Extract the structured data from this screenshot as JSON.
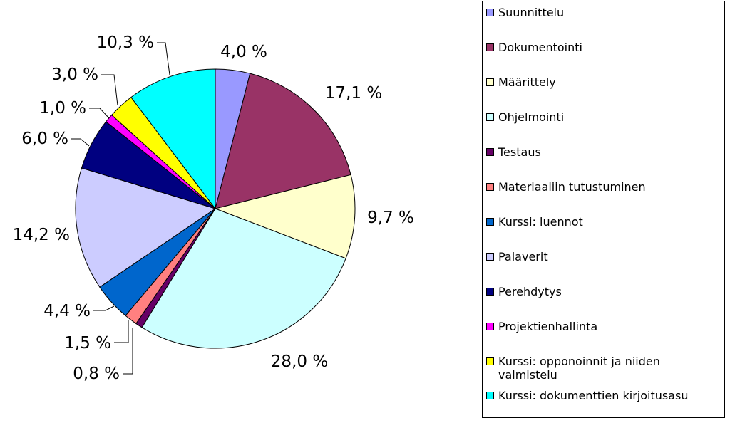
{
  "chart_data": {
    "type": "pie",
    "title": "",
    "legend_position": "right",
    "slices": [
      {
        "name": "Suunnittelu",
        "value": 4.0,
        "label": "4,0 %",
        "color": "#9999ff"
      },
      {
        "name": "Dokumentointi",
        "value": 17.1,
        "label": "17,1 %",
        "color": "#993366"
      },
      {
        "name": "Määrittely",
        "value": 9.7,
        "label": "9,7 %",
        "color": "#ffffcc"
      },
      {
        "name": "Ohjelmointi",
        "value": 28.0,
        "label": "28,0 %",
        "color": "#ccffff"
      },
      {
        "name": "Testaus",
        "value": 0.8,
        "label": "0,8 %",
        "color": "#660066"
      },
      {
        "name": "Materiaaliin tutustuminen",
        "value": 1.5,
        "label": "1,5 %",
        "color": "#ff8080"
      },
      {
        "name": "Kurssi: luennot",
        "value": 4.4,
        "label": "4,4 %",
        "color": "#0066cc"
      },
      {
        "name": "Palaverit",
        "value": 14.2,
        "label": "14,2 %",
        "color": "#ccccff"
      },
      {
        "name": "Perehdytys",
        "value": 6.0,
        "label": "6,0 %",
        "color": "#000080"
      },
      {
        "name": "Projektienhallinta",
        "value": 1.0,
        "label": "1,0 %",
        "color": "#ff00ff"
      },
      {
        "name": "Kurssi: opponoinnit ja niiden valmistelu",
        "value": 3.0,
        "label": "3,0 %",
        "color": "#ffff00"
      },
      {
        "name": "Kurssi: dokumenttien kirjoitusasu",
        "value": 10.3,
        "label": "10,3 %",
        "color": "#00ffff"
      }
    ]
  }
}
